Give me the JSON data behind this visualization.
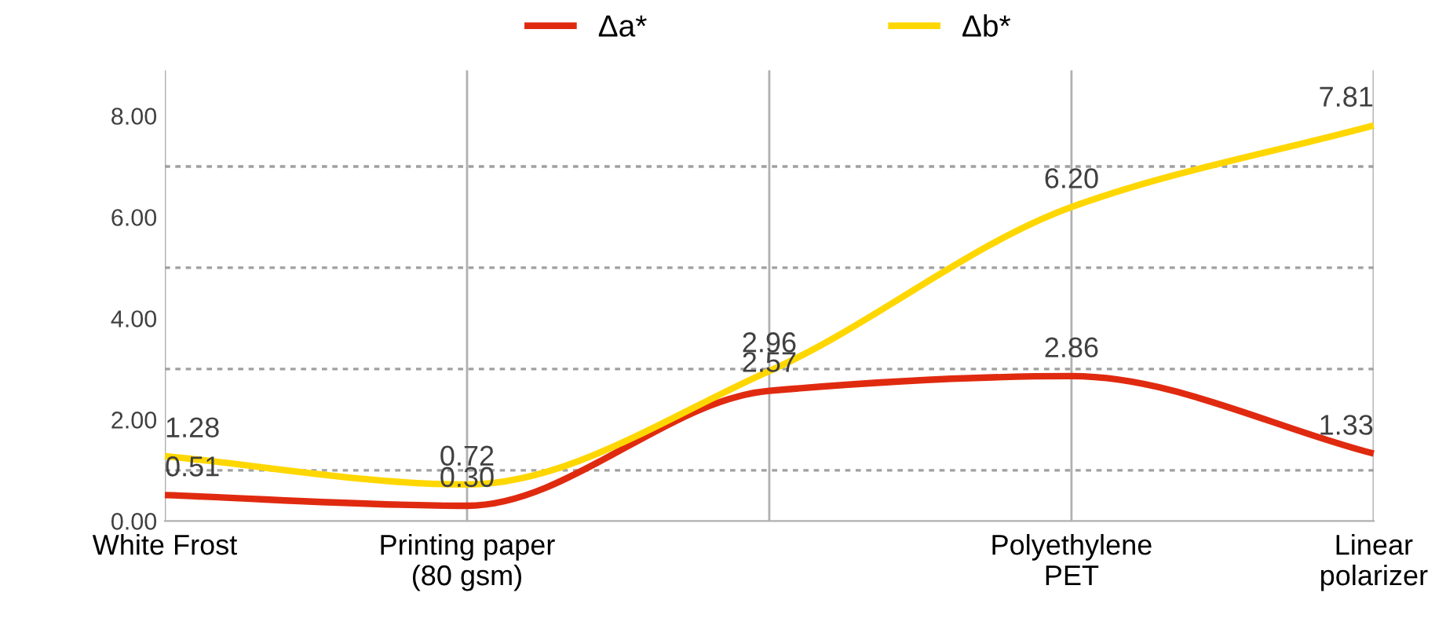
{
  "chart_data": {
    "type": "line",
    "categories": [
      "White Frost",
      "Printing paper\n(80 gsm)",
      null,
      "Polyethylene\nPET",
      "Linear\npolarizer"
    ],
    "series": [
      {
        "name": "Δa*",
        "color": "#e02a10",
        "values": [
          0.51,
          0.3,
          2.57,
          2.86,
          1.33
        ],
        "value_labels": [
          "0.51",
          "0.30",
          "2.57",
          "2.86",
          "1.33"
        ]
      },
      {
        "name": "Δb*",
        "color": "#ffd700",
        "values": [
          1.28,
          0.72,
          2.96,
          6.2,
          7.81
        ],
        "value_labels": [
          "1.28",
          "0.72",
          "2.96",
          "6.20",
          "7.81"
        ]
      }
    ],
    "ylim": [
      0,
      8.9
    ],
    "yticks": [
      {
        "value": 0,
        "label": "0.00"
      },
      {
        "value": 1,
        "label": null
      },
      {
        "value": 2,
        "label": "2.00"
      },
      {
        "value": 3,
        "label": null
      },
      {
        "value": 4,
        "label": "4.00"
      },
      {
        "value": 5,
        "label": null
      },
      {
        "value": 6,
        "label": "6.00"
      },
      {
        "value": 7,
        "label": null
      },
      {
        "value": 8,
        "label": "8.00"
      }
    ],
    "grid": true,
    "legend": "top",
    "marker": "none",
    "line_style": "solid"
  }
}
